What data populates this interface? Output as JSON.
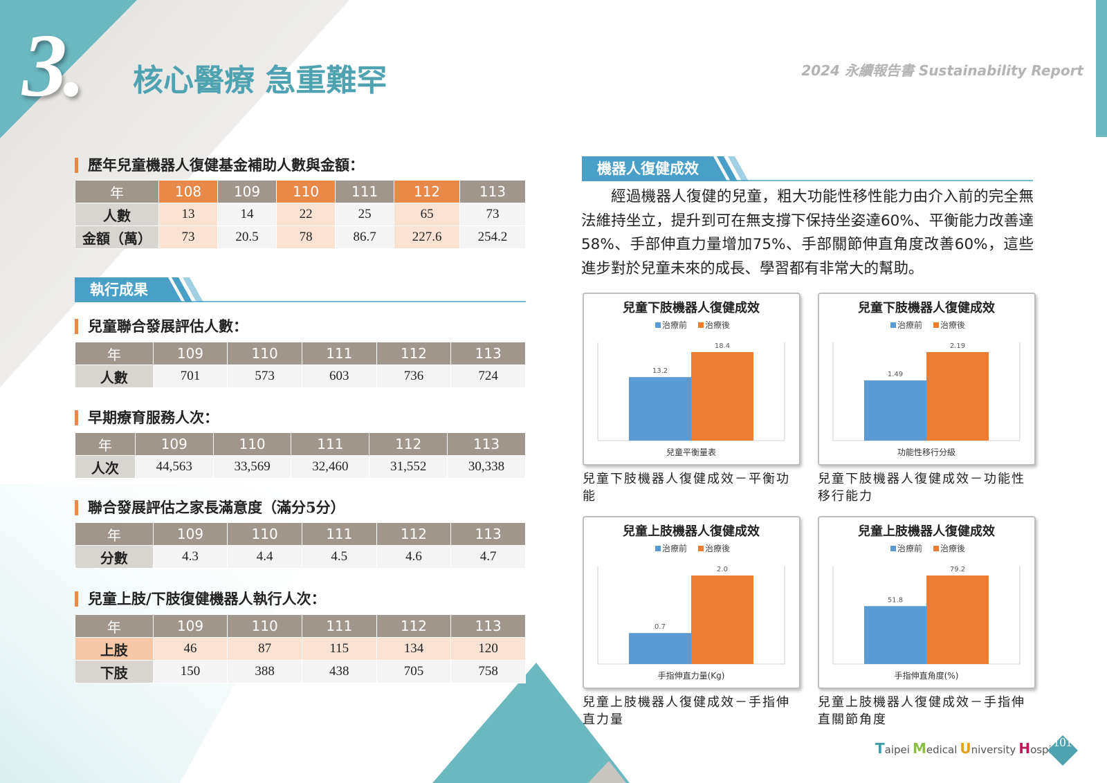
{
  "header": {
    "chapter": "3.",
    "title": "核心醫療 急重難罕",
    "report": "2024 永續報告書 Sustainability Report"
  },
  "section_tag": "執行成果",
  "right_tag": "機器人復健成效",
  "tables": [
    {
      "heading": "歷年兒童機器人復健基金補助人數與金額：",
      "header": [
        "年",
        "108",
        "109",
        "110",
        "111",
        "112",
        "113"
      ],
      "rows": [
        [
          "人數",
          "13",
          "14",
          "22",
          "25",
          "65",
          "73"
        ],
        [
          "金額（萬）",
          "73",
          "20.5",
          "78",
          "86.7",
          "227.6",
          "254.2"
        ]
      ]
    },
    {
      "heading": "兒童聯合發展評估人數：",
      "header": [
        "年",
        "109",
        "110",
        "111",
        "112",
        "113"
      ],
      "rows": [
        [
          "人數",
          "701",
          "573",
          "603",
          "736",
          "724"
        ]
      ]
    },
    {
      "heading": "早期療育服務人次：",
      "header": [
        "年",
        "109",
        "110",
        "111",
        "112",
        "113"
      ],
      "rows": [
        [
          "人次",
          "44,563",
          "33,569",
          "32,460",
          "31,552",
          "30,338"
        ]
      ]
    },
    {
      "heading": "聯合發展評估之家長滿意度（滿分5分）",
      "header": [
        "年",
        "109",
        "110",
        "111",
        "112",
        "113"
      ],
      "rows": [
        [
          "分數",
          "4.3",
          "4.4",
          "4.5",
          "4.6",
          "4.7"
        ]
      ]
    },
    {
      "heading": "兒童上肢/下肢復健機器人執行人次：",
      "header": [
        "年",
        "109",
        "110",
        "111",
        "112",
        "113"
      ],
      "rows": [
        [
          "上肢",
          "46",
          "87",
          "115",
          "134",
          "120"
        ],
        [
          "下肢",
          "150",
          "388",
          "438",
          "705",
          "758"
        ]
      ]
    }
  ],
  "paragraph": "經過機器人復健的兒童，粗大功能性移性能力由介入前的完全無法維持坐立，提升到可在無支撐下保持坐姿達60%、平衡能力改善達58%、手部伸直力量增加75%、手部關節伸直角度改善60%，這些進步對於兒童未來的成長、學習都有非常大的幫助。",
  "charts": [
    {
      "type": "bar",
      "title": "兒童下肢機器人復健成效",
      "x_label": "兒童平衡量表",
      "caption": "兒童下肢機器人復健成效－平衡功能",
      "series": [
        {
          "name": "治療前",
          "color": "#5b9bd5",
          "values": [
            13.2
          ]
        },
        {
          "name": "治療後",
          "color": "#ed7d31",
          "values": [
            18.4
          ]
        }
      ]
    },
    {
      "type": "bar",
      "title": "兒童下肢機器人復健成效",
      "x_label": "功能性移行分級",
      "caption": "兒童下肢機器人復健成效－功能性移行能力",
      "series": [
        {
          "name": "治療前",
          "color": "#5b9bd5",
          "values": [
            1.49
          ]
        },
        {
          "name": "治療後",
          "color": "#ed7d31",
          "values": [
            2.19
          ]
        }
      ]
    },
    {
      "type": "bar",
      "title": "兒童上肢機器人復健成效",
      "x_label": "手指伸直力量(Kg)",
      "caption": "兒童上肢機器人復健成效－手指伸直力量",
      "series": [
        {
          "name": "治療前",
          "color": "#5b9bd5",
          "values": [
            0.7
          ]
        },
        {
          "name": "治療後",
          "color": "#ed7d31",
          "values": [
            2
          ],
          "value_labels": [
            "2.0"
          ]
        }
      ]
    },
    {
      "type": "bar",
      "title": "兒童上肢機器人復健成效",
      "x_label": "手指伸直角度(%)",
      "caption": "兒童上肢機器人復健成效－手指伸直關節角度",
      "series": [
        {
          "name": "治療前",
          "color": "#5b9bd5",
          "values": [
            51.8
          ]
        },
        {
          "name": "治療後",
          "color": "#ed7d31",
          "values": [
            79.2
          ]
        }
      ]
    }
  ],
  "footer": {
    "logo": [
      "Taipei",
      "Medical",
      "University",
      "Hospital"
    ],
    "page": "101"
  }
}
